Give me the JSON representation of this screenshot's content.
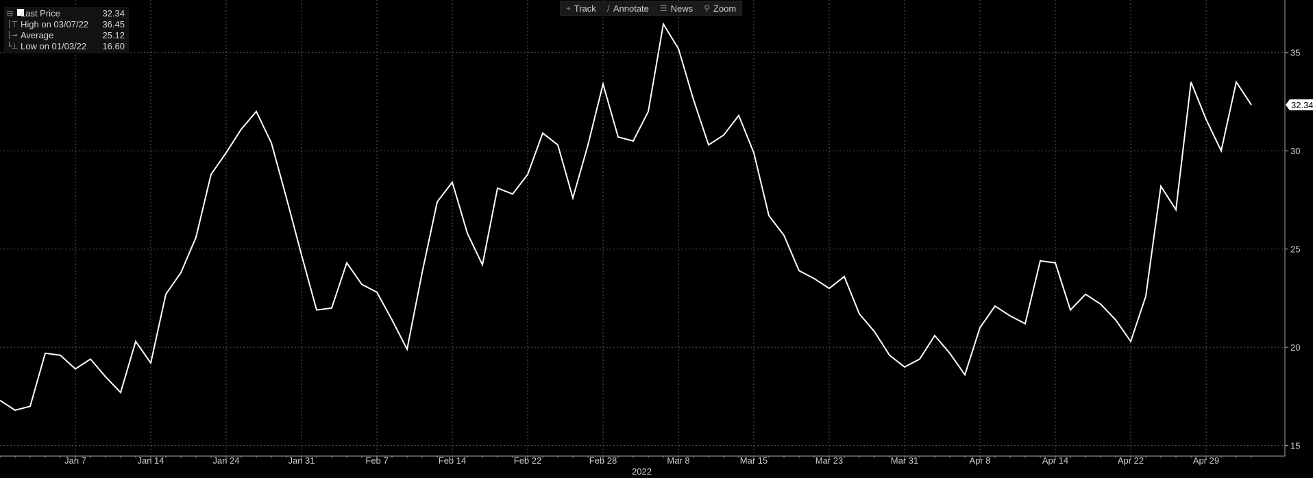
{
  "toolbar": {
    "items": [
      {
        "label": "Track",
        "icon": "crosshair-icon",
        "glyph": "⌖"
      },
      {
        "label": "Annotate",
        "icon": "pencil-icon",
        "glyph": "∕"
      },
      {
        "label": "News",
        "icon": "news-icon",
        "glyph": "☰"
      },
      {
        "label": "Zoom",
        "icon": "magnifier-icon",
        "glyph": "⚲"
      }
    ]
  },
  "legend": {
    "rows": [
      {
        "label": "Last Price",
        "value": "32.34"
      },
      {
        "label": "High on 03/07/22",
        "value": "36.45"
      },
      {
        "label": "Average",
        "value": "25.12"
      },
      {
        "label": "Low on 01/03/22",
        "value": "16.60"
      }
    ]
  },
  "colors": {
    "background": "#000000",
    "line": "#ffffff",
    "grid": "#5a5a5a",
    "text": "#d0d0d0"
  },
  "chart_data": {
    "type": "line",
    "title": "",
    "xlabel": "2022",
    "ylabel": "",
    "ylim": [
      14.5,
      37.5
    ],
    "yticks": [
      15,
      20,
      25,
      30,
      35
    ],
    "x_tick_labels": [
      "Jan 7",
      "Jan 14",
      "Jan 24",
      "Jan 31",
      "Feb 7",
      "Feb 14",
      "Feb 22",
      "Feb 28",
      "Mar 8",
      "Mar 15",
      "Mar 23",
      "Mar 31",
      "Apr 8",
      "Apr 14",
      "Apr 22",
      "Apr 29"
    ],
    "x_tick_indices": [
      5,
      10,
      15,
      20,
      25,
      30,
      35,
      40,
      45,
      50,
      55,
      60,
      65,
      70,
      75,
      80
    ],
    "last_value_label": "32.34",
    "grid": true,
    "legend_position": "top-left",
    "series": [
      {
        "name": "Last Price",
        "values": [
          17.3,
          16.8,
          17.0,
          19.7,
          19.6,
          18.9,
          19.4,
          18.5,
          17.7,
          20.3,
          19.2,
          22.7,
          23.8,
          25.6,
          28.8,
          29.9,
          31.1,
          32.0,
          30.4,
          27.6,
          24.7,
          21.9,
          22.0,
          24.3,
          23.2,
          22.8,
          21.4,
          19.9,
          23.8,
          27.4,
          28.4,
          25.8,
          24.2,
          28.1,
          27.8,
          28.8,
          30.9,
          30.3,
          27.6,
          30.3,
          33.4,
          30.7,
          30.5,
          32.0,
          36.45,
          35.2,
          32.6,
          30.3,
          30.8,
          31.8,
          29.9,
          26.7,
          25.7,
          23.9,
          23.5,
          23.0,
          23.6,
          21.7,
          20.8,
          19.6,
          19.0,
          19.4,
          20.6,
          19.7,
          18.6,
          21.0,
          22.1,
          21.6,
          21.2,
          24.4,
          24.3,
          21.9,
          22.7,
          22.2,
          21.4,
          20.3,
          22.6,
          28.2,
          27.0,
          33.5,
          31.6,
          30.0,
          33.5,
          32.34
        ]
      }
    ]
  }
}
